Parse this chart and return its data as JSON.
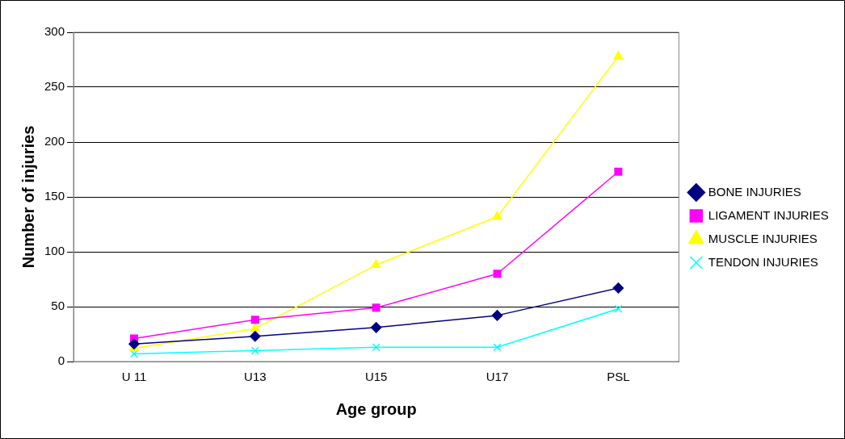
{
  "chart_data": {
    "type": "line",
    "xlabel": "Age group",
    "ylabel": "Number of injuries",
    "categories": [
      "U 11",
      "U13",
      "U15",
      "U17",
      "PSL"
    ],
    "series": [
      {
        "name": "BONE INJURIES",
        "color": "#000080",
        "marker": "diamond",
        "values": [
          16,
          23,
          31,
          42,
          67
        ]
      },
      {
        "name": "LIGAMENT INJURIES",
        "color": "#ff00ff",
        "marker": "square",
        "values": [
          21,
          38,
          49,
          80,
          173
        ]
      },
      {
        "name": "MUSCLE INJURIES",
        "color": "#ffff00",
        "marker": "triangle",
        "values": [
          12,
          30,
          88,
          132,
          278
        ]
      },
      {
        "name": "TENDON INJURIES",
        "color": "#00ffff",
        "marker": "cross",
        "values": [
          7,
          10,
          13,
          13,
          48
        ]
      }
    ],
    "ylim": [
      0,
      300
    ],
    "yticks": [
      0,
      50,
      100,
      150,
      200,
      250,
      300
    ],
    "grid": "y",
    "legend": "right"
  }
}
